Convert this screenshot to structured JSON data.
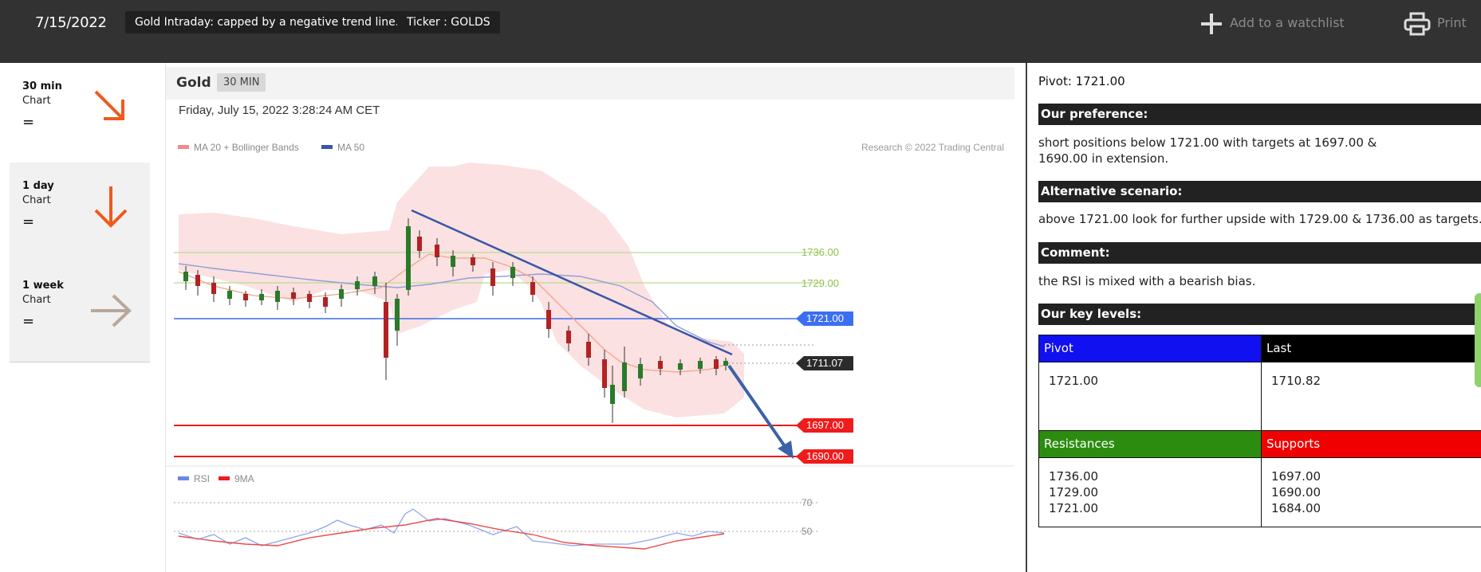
{
  "header": {
    "date": "7/15/2022",
    "title": "Gold Intraday: capped by a negative trend line.",
    "ticker": "Ticker : GOLDS",
    "watchlist_label": "Add to a watchlist",
    "print_label": "Print"
  },
  "timeframes": [
    {
      "period": "30 min",
      "label": "Chart",
      "status": "=",
      "arrow": "down-right-arrow-icon",
      "color": "#f05a1e"
    },
    {
      "period": "1 day",
      "label": "Chart",
      "status": "=",
      "arrow": "down-arrow-icon",
      "color": "#f05a1e"
    },
    {
      "period": "1 week",
      "label": "Chart",
      "status": "=",
      "arrow": "right-arrow-icon",
      "color": "#b8a89a"
    }
  ],
  "chart": {
    "symbol": "Gold",
    "timeframe": "30 MIN",
    "timestamp": "Friday, July 15, 2022 3:28:24 AM CET",
    "legend": [
      {
        "label": "MA 20 + Bollinger Bands",
        "color": "#f08a8a"
      },
      {
        "label": "MA 50",
        "color": "#3a56a8"
      }
    ],
    "copyright": "Research © 2022 Trading Central",
    "levels": [
      {
        "label": "1736.00",
        "kind": "target-line",
        "color": "#9fcf5a"
      },
      {
        "label": "1729.00",
        "kind": "target-line",
        "color": "#9fcf5a"
      },
      {
        "label": "1721.00",
        "kind": "pivot",
        "color": "#3b6ef2"
      },
      {
        "label": "1711.07",
        "kind": "last",
        "color": "#2b2b2b"
      },
      {
        "label": "1697.00",
        "kind": "support",
        "color": "#ee1c1c"
      },
      {
        "label": "1690.00",
        "kind": "support",
        "color": "#ee1c1c"
      }
    ],
    "rsi_legend": [
      {
        "label": "RSI",
        "color": "#6a86e6"
      },
      {
        "label": "9MA",
        "color": "#ee1c1c"
      }
    ],
    "rsi_levels": [
      "70",
      "50"
    ]
  },
  "analysis": {
    "pivot_text": "Pivot: 1721.00",
    "preference_title": "Our preference:",
    "preference_text": "short positions below 1721.00 with targets at 1697.00 & 1690.00 in extension.",
    "alternative_title": "Alternative scenario:",
    "alternative_text": "above 1721.00 look for further upside with 1729.00 & 1736.00 as targets.",
    "comment_title": "Comment:",
    "comment_text": "the RSI is mixed with a bearish bias.",
    "key_levels_title": "Our key levels:",
    "table": {
      "pivot_header": "Pivot",
      "last_header": "Last",
      "pivot_value": "1721.00",
      "last_value": "1710.82",
      "resistances_header": "Resistances",
      "supports_header": "Supports",
      "resistances": [
        "1736.00",
        "1729.00",
        "1721.00"
      ],
      "supports": [
        "1697.00",
        "1690.00",
        "1684.00"
      ]
    }
  },
  "colors": {
    "topbar": "#323232",
    "pivot_header": "#1010f0",
    "last_header": "#000000",
    "resistances_header": "#2c8c10",
    "supports_header": "#f00000"
  }
}
